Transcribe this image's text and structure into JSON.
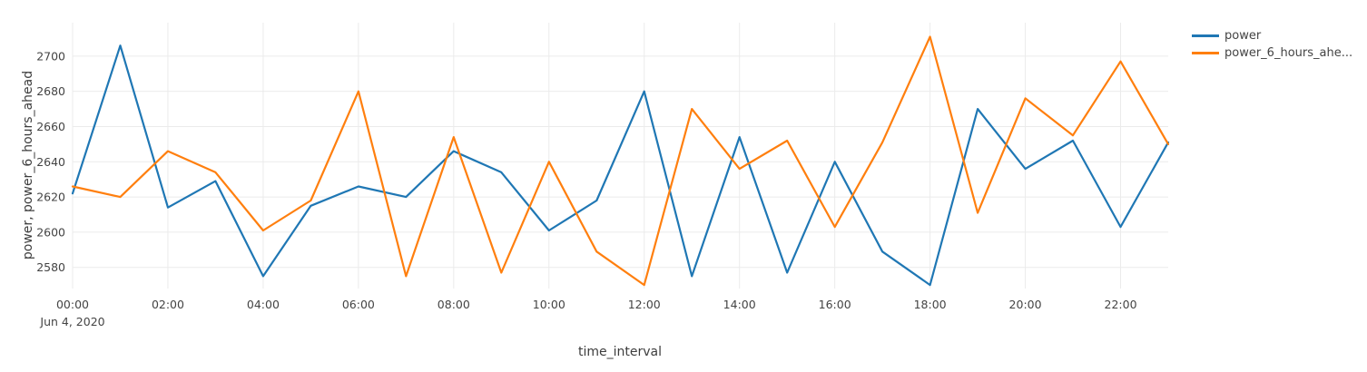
{
  "chart_data": {
    "type": "line",
    "title": "",
    "xlabel": "time_interval",
    "ylabel": "power, power_6_hours_ahead",
    "x_start_date_label": "Jun 4, 2020",
    "categories": [
      "00:00",
      "01:00",
      "02:00",
      "03:00",
      "04:00",
      "05:00",
      "06:00",
      "07:00",
      "08:00",
      "09:00",
      "10:00",
      "11:00",
      "12:00",
      "13:00",
      "14:00",
      "15:00",
      "16:00",
      "17:00",
      "18:00",
      "19:00",
      "20:00",
      "21:00",
      "22:00",
      "23:00"
    ],
    "x_tick_labels": [
      "00:00",
      "02:00",
      "04:00",
      "06:00",
      "08:00",
      "10:00",
      "12:00",
      "14:00",
      "16:00",
      "18:00",
      "20:00",
      "22:00"
    ],
    "x_tick_step": 2,
    "y_ticks": [
      2580,
      2600,
      2620,
      2640,
      2660,
      2680,
      2700
    ],
    "ylim": [
      2568,
      2719
    ],
    "grid": true,
    "legend_position": "top-right",
    "series": [
      {
        "name": "power",
        "display_label": "power",
        "color": "#1f77b4",
        "values": [
          2622,
          2706,
          2614,
          2629,
          2575,
          2615,
          2626,
          2620,
          2646,
          2634,
          2601,
          2618,
          2680,
          2575,
          2654,
          2577,
          2640,
          2589,
          2570,
          2670,
          2636,
          2652,
          2603,
          2651
        ]
      },
      {
        "name": "power_6_hours_ahead",
        "display_label": "power_6_hours_ahe...",
        "color": "#ff7f0e",
        "values": [
          2626,
          2620,
          2646,
          2634,
          2601,
          2618,
          2680,
          2575,
          2654,
          2577,
          2640,
          2589,
          2570,
          2670,
          2636,
          2652,
          2603,
          2651,
          2711,
          2611,
          2676,
          2655,
          2697,
          2650
        ]
      }
    ]
  }
}
